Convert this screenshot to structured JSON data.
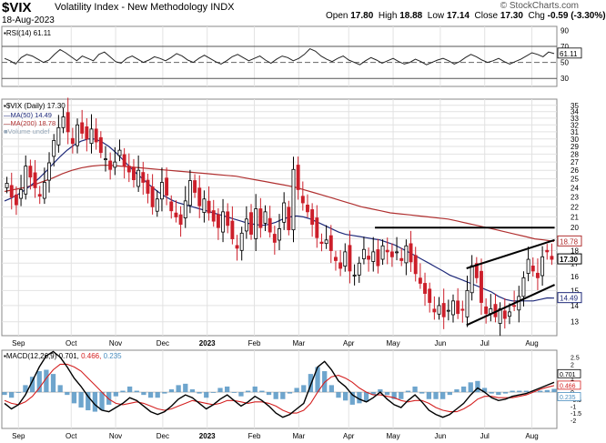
{
  "header": {
    "symbol": "$VIX",
    "description": "Volatility Index - New Methodology  INDX",
    "date": "18-Aug-2023",
    "open_label": "Open",
    "open": "17.80",
    "high_label": "High",
    "high": "18.88",
    "low_label": "Low",
    "low": "17.14",
    "close_label": "Close",
    "close": "17.30",
    "chg_label": "Chg",
    "chg": "-0.59 (-3.30%)",
    "watermark": "© StockCharts.com"
  },
  "colors": {
    "up": "#000000",
    "down": "#cc1f2a",
    "ma50": "#1f2a7a",
    "ma200": "#b03030",
    "macd_line": "#000000",
    "signal_line": "#d42020",
    "histogram": "#4a8ec0",
    "grid": "#e2e2e2"
  },
  "chart_data": [
    {
      "type": "line",
      "panel": "RSI",
      "legend": "RSI(14) 61.11",
      "last_value": "61.11",
      "ylim": [
        20,
        95
      ],
      "yticks": [
        "90",
        "70",
        "50",
        "30"
      ],
      "reference_lines": [
        70,
        50,
        30
      ],
      "values": [
        55,
        52,
        48,
        56,
        60,
        58,
        54,
        50,
        53,
        60,
        66,
        62,
        57,
        52,
        58,
        55,
        52,
        60,
        63,
        57,
        51,
        49,
        55,
        58,
        54,
        50,
        53,
        57,
        55,
        52,
        56,
        61,
        58,
        53,
        50,
        55,
        59,
        55,
        51,
        48,
        52,
        57,
        60,
        56,
        52,
        55,
        58,
        53,
        49,
        54,
        58,
        56,
        52,
        55,
        60,
        67,
        64,
        58,
        54,
        51,
        55,
        58,
        53,
        50,
        47,
        52,
        56,
        53,
        49,
        52,
        55,
        51,
        48,
        50,
        54,
        51,
        47,
        50,
        53,
        55,
        52,
        48,
        51,
        56,
        60,
        57,
        53,
        50,
        52,
        55,
        51,
        48,
        51,
        54,
        58,
        62,
        60,
        57,
        63,
        61
      ]
    },
    {
      "type": "candlestick",
      "panel": "Price",
      "title": "$VIX (Daily) 17.30",
      "series": [
        {
          "name": "MA(50)",
          "legend": "MA(50) 14.49",
          "last": 14.49
        },
        {
          "name": "MA(200)",
          "legend": "MA(200) 18.78",
          "last": 18.78
        }
      ],
      "volume_legend": "Volume undef",
      "ylim": [
        12.2,
        36
      ],
      "yticks": [
        13,
        14,
        15,
        16,
        17,
        18,
        19,
        20,
        21,
        22,
        23,
        24,
        25,
        26,
        27,
        28,
        29,
        30,
        31,
        32,
        33,
        34,
        35
      ],
      "price_labels": [
        {
          "text": "18.78",
          "value": 18.78,
          "color": "#b03030"
        },
        {
          "text": "17.30",
          "value": 17.3,
          "color": "#000000"
        },
        {
          "text": "14.49",
          "value": 14.49,
          "color": "#1f2a7a"
        }
      ],
      "closes": [
        24.5,
        23.0,
        22.2,
        23.8,
        26.5,
        25.2,
        24.0,
        23.1,
        24.6,
        26.9,
        29.8,
        31.6,
        33.2,
        31.0,
        29.4,
        32.0,
        30.8,
        30.0,
        31.4,
        29.6,
        28.2,
        27.4,
        26.1,
        27.0,
        28.5,
        26.5,
        25.8,
        24.9,
        26.0,
        24.6,
        23.4,
        22.0,
        22.8,
        24.6,
        23.2,
        21.6,
        21.0,
        20.3,
        22.6,
        24.8,
        23.5,
        22.1,
        22.8,
        21.4,
        20.6,
        20.0,
        21.5,
        20.2,
        19.0,
        18.2,
        19.5,
        20.8,
        19.4,
        21.8,
        20.0,
        21.5,
        19.6,
        18.7,
        19.9,
        22.4,
        19.8,
        26.1,
        23.8,
        22.4,
        21.5,
        20.3,
        19.1,
        18.6,
        18.9,
        18.0,
        17.2,
        16.6,
        17.9,
        16.4,
        16.1,
        17.0,
        18.1,
        17.3,
        17.9,
        16.8,
        18.4,
        17.9,
        17.5,
        17.9,
        17.2,
        18.4,
        17.1,
        16.2,
        15.5,
        14.8,
        14.2,
        13.6,
        14.0,
        13.3,
        13.7,
        14.3,
        13.5,
        13.7,
        15.0,
        16.8,
        15.9,
        14.2,
        13.5,
        13.8,
        13.3,
        13.8,
        13.2,
        13.6,
        14.0,
        14.6,
        15.9,
        17.3,
        16.4,
        15.9,
        17.5,
        17.9,
        17.3
      ],
      "ma50": [
        22.6,
        22.9,
        23.3,
        23.8,
        24.4,
        25.1,
        25.9,
        26.8,
        27.7,
        28.5,
        29.2,
        29.7,
        30.0,
        30.0,
        29.6,
        29.0,
        28.2,
        27.3,
        26.4,
        25.6,
        24.9,
        24.2,
        23.6,
        23.1,
        22.7,
        22.4,
        22.2,
        22.0,
        21.8,
        21.6,
        21.4,
        21.2,
        21.0,
        20.8,
        20.6,
        20.4,
        20.3,
        20.2,
        20.3,
        20.5,
        20.8,
        21.0,
        21.1,
        21.0,
        20.8,
        20.5,
        20.2,
        19.9,
        19.6,
        19.4,
        19.3,
        19.2,
        19.1,
        19.0,
        18.9,
        18.7,
        18.5,
        18.2,
        17.9,
        17.6,
        17.3,
        17.0,
        16.7,
        16.4,
        16.1,
        15.9,
        15.7,
        15.5,
        15.3,
        15.1,
        14.9,
        14.6,
        14.4,
        14.3,
        14.3,
        14.3,
        14.3,
        14.4,
        14.5,
        14.49
      ],
      "ma200": [
        23.6,
        23.8,
        24.0,
        24.3,
        24.7,
        25.1,
        25.6,
        26.0,
        26.3,
        26.5,
        26.6,
        26.6,
        26.5,
        26.4,
        26.3,
        26.2,
        26.1,
        26.0,
        25.9,
        25.8,
        25.7,
        25.6,
        25.5,
        25.4,
        25.3,
        25.1,
        24.9,
        24.7,
        24.5,
        24.3,
        24.1,
        23.8,
        23.5,
        23.2,
        22.9,
        22.6,
        22.3,
        22.0,
        21.8,
        21.6,
        21.4,
        21.3,
        21.2,
        21.1,
        21.0,
        20.9,
        20.8,
        20.6,
        20.4,
        20.2,
        20.0,
        19.8,
        19.6,
        19.4,
        19.2,
        19.0,
        18.9,
        18.78
      ],
      "trendlines": [
        {
          "from": [
            "May",
            20.0
          ],
          "to": [
            "Aug",
            20.0
          ],
          "label": "horizontal resistance"
        },
        {
          "from": [
            "Jul",
            16.6
          ],
          "to": [
            "Aug",
            18.9
          ],
          "label": "upper wedge"
        },
        {
          "from": [
            "Jul",
            12.8
          ],
          "to": [
            "Aug",
            15.4
          ],
          "label": "lower wedge"
        }
      ]
    },
    {
      "type": "line",
      "panel": "MACD",
      "legend_prefix": "MACD(12,26,9)",
      "legend_values": [
        "0.701",
        "0.466",
        "0.235"
      ],
      "ylim": [
        -2.6,
        3.0
      ],
      "yticks": [
        "2.5",
        "2",
        "1.5",
        "1",
        "0.5",
        "0",
        "-0.5",
        "-1",
        "-1.5",
        "-2"
      ],
      "price_labels": [
        {
          "text": "0.701",
          "value": 0.701,
          "color": "#000000"
        },
        {
          "text": "0.466",
          "value": 0.466,
          "color": "#d42020"
        },
        {
          "text": "0.235",
          "value": 0.235,
          "color": "#4a8ec0"
        }
      ],
      "series": [
        {
          "name": "MACD",
          "values": [
            -0.8,
            -1.2,
            -0.9,
            -0.2,
            0.8,
            1.8,
            2.6,
            2.9,
            2.5,
            1.8,
            1.0,
            0.4,
            -0.3,
            -0.9,
            -1.3,
            -1.4,
            -1.1,
            -0.8,
            -0.4,
            -0.6,
            -1.0,
            -1.4,
            -1.6,
            -1.4,
            -1.0,
            -0.5,
            -0.2,
            -0.4,
            -0.8,
            -1.2,
            -0.9,
            -0.5,
            -0.2,
            -0.6,
            -1.0,
            -0.7,
            -0.3,
            -0.6,
            -1.0,
            -1.5,
            -1.8,
            -1.6,
            -1.2,
            -0.8,
            0.5,
            1.8,
            2.2,
            1.6,
            0.8,
            0.4,
            -0.2,
            -0.5,
            -0.7,
            -0.4,
            0.0,
            -0.5,
            -0.9,
            -1.1,
            -0.6,
            -0.2,
            -0.7,
            -1.3,
            -1.6,
            -1.8,
            -1.6,
            -1.2,
            -0.8,
            -0.2,
            0.3,
            0.0,
            -0.4,
            -0.6,
            -0.5,
            -0.3,
            -0.2,
            -0.1,
            0.1,
            0.3,
            0.5,
            0.701
          ]
        },
        {
          "name": "Signal",
          "values": [
            -0.6,
            -0.8,
            -0.9,
            -0.7,
            -0.3,
            0.3,
            1.0,
            1.6,
            2.0,
            2.0,
            1.8,
            1.5,
            1.0,
            0.5,
            0.0,
            -0.5,
            -0.8,
            -0.9,
            -0.8,
            -0.7,
            -0.8,
            -1.0,
            -1.2,
            -1.3,
            -1.2,
            -1.0,
            -0.8,
            -0.6,
            -0.7,
            -0.8,
            -0.9,
            -0.8,
            -0.6,
            -0.6,
            -0.7,
            -0.8,
            -0.7,
            -0.7,
            -0.8,
            -1.0,
            -1.3,
            -1.5,
            -1.5,
            -1.3,
            -0.8,
            0.0,
            0.7,
            1.1,
            1.2,
            1.0,
            0.7,
            0.3,
            0.0,
            -0.2,
            -0.2,
            -0.3,
            -0.4,
            -0.6,
            -0.7,
            -0.6,
            -0.6,
            -0.8,
            -1.1,
            -1.3,
            -1.4,
            -1.4,
            -1.2,
            -0.9,
            -0.5,
            -0.3,
            -0.3,
            -0.4,
            -0.4,
            -0.4,
            -0.3,
            -0.2,
            0.0,
            0.2,
            0.35,
            0.466
          ]
        }
      ]
    }
  ],
  "x_axis": {
    "labels": [
      {
        "text": "Sep",
        "frac": 0.03
      },
      {
        "text": "Oct",
        "frac": 0.125
      },
      {
        "text": "Nov",
        "frac": 0.205
      },
      {
        "text": "Dec",
        "frac": 0.29
      },
      {
        "text": "2023",
        "frac": 0.37
      },
      {
        "text": "Feb",
        "frac": 0.455
      },
      {
        "text": "Mar",
        "frac": 0.535
      },
      {
        "text": "Apr",
        "frac": 0.625
      },
      {
        "text": "May",
        "frac": 0.705
      },
      {
        "text": "Jun",
        "frac": 0.79
      },
      {
        "text": "Jul",
        "frac": 0.87
      },
      {
        "text": "Aug",
        "frac": 0.955
      }
    ]
  }
}
